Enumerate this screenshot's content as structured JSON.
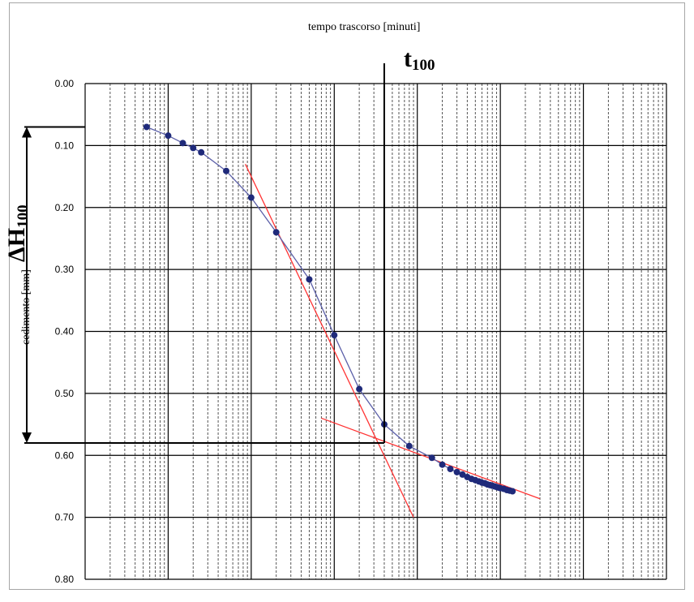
{
  "chart_data": {
    "type": "scatter",
    "title": "",
    "xlabel": "tempo trascorso [minuti]",
    "ylabel": "cedimento [mm]",
    "x_scale": "log",
    "xlim": [
      0.001,
      10000
    ],
    "ylim": [
      0,
      0.8
    ],
    "y_inverted": true,
    "y_ticks": [
      "0.00",
      "0.10",
      "0.20",
      "0.30",
      "0.40",
      "0.50",
      "0.60",
      "0.70",
      "0.80"
    ],
    "grid": true,
    "series": [
      {
        "marker": "circle",
        "line": true,
        "color": "#1f2a7a",
        "points": [
          [
            0.0055,
            0.07
          ],
          [
            0.01,
            0.084
          ],
          [
            0.015,
            0.096
          ],
          [
            0.02,
            0.104
          ],
          [
            0.025,
            0.111
          ],
          [
            0.05,
            0.141
          ],
          [
            0.1,
            0.184
          ],
          [
            0.2,
            0.24
          ],
          [
            0.5,
            0.316
          ],
          [
            1.0,
            0.406
          ],
          [
            2.0,
            0.493
          ],
          [
            4.0,
            0.55
          ],
          [
            8.0,
            0.585
          ],
          [
            15,
            0.604
          ],
          [
            20,
            0.615
          ],
          [
            25,
            0.622
          ],
          [
            30,
            0.627
          ],
          [
            35,
            0.631
          ],
          [
            40,
            0.635
          ],
          [
            45,
            0.638
          ],
          [
            50,
            0.64
          ],
          [
            55,
            0.642
          ],
          [
            60,
            0.644
          ],
          [
            65,
            0.645
          ],
          [
            70,
            0.647
          ],
          [
            75,
            0.648
          ],
          [
            80,
            0.649
          ],
          [
            85,
            0.65
          ],
          [
            90,
            0.651
          ],
          [
            95,
            0.652
          ],
          [
            100,
            0.653
          ],
          [
            110,
            0.654
          ],
          [
            120,
            0.656
          ],
          [
            130,
            0.657
          ],
          [
            140,
            0.658
          ]
        ]
      }
    ],
    "construction_lines": {
      "color": "#ff3333",
      "steep_tangent": [
        [
          0.085,
          0.13
        ],
        [
          9.0,
          0.7
        ]
      ],
      "flat_tangent": [
        [
          0.7,
          0.54
        ],
        [
          300,
          0.67
        ]
      ]
    },
    "annotations": {
      "t100_label": "t",
      "t100_sub": "100",
      "t100_x": 4.0,
      "dh100_label": "ΔH",
      "dh100_sub": "100",
      "dh100_from": 0.07,
      "dh100_to": 0.58
    }
  }
}
